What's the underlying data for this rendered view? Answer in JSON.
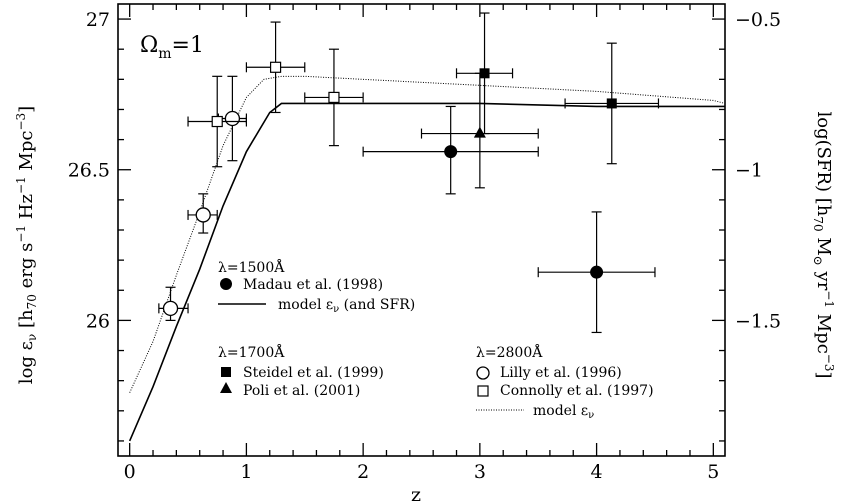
{
  "chart_data": {
    "type": "scatter",
    "title": "",
    "annotation": "Ω_m=1",
    "xlabel": "z",
    "ylabel_left": "log ε_ν [h_70 erg s^-1 Hz^-1 Mpc^-3]",
    "ylabel_right": "log(SFR) [h_70 M_⊙ yr^-1 Mpc^-3]",
    "xlim": [
      -0.1,
      5.1
    ],
    "ylim": [
      25.55,
      27.05
    ],
    "ylim_right_ticks": [
      -0.5,
      -1,
      -1.5
    ],
    "x_ticks": [
      0,
      1,
      2,
      3,
      4,
      5
    ],
    "y_ticks_left": [
      26,
      26.5,
      27
    ],
    "x_tick_labels": [
      "0",
      "1",
      "2",
      "3",
      "4",
      "5"
    ],
    "y_tick_labels_left": [
      "26",
      "26.5",
      "27"
    ],
    "y_tick_labels_right": [
      "−0.5",
      "−1",
      "−1.5"
    ],
    "right_axis_relation": "SFR = log_eps - 27.5",
    "series": [
      {
        "name": "Madau et al. (1998)",
        "marker": "filled-circle",
        "points": [
          {
            "x": 2.75,
            "y": 26.56,
            "xerr": [
              0.75,
              0.75
            ],
            "yerr": [
              0.14,
              0.15
            ]
          },
          {
            "x": 4.0,
            "y": 26.16,
            "xerr": [
              0.5,
              0.5
            ],
            "yerr": [
              0.2,
              0.2
            ]
          }
        ]
      },
      {
        "name": "Steidel et al. (1999)",
        "marker": "filled-square",
        "points": [
          {
            "x": 3.04,
            "y": 26.82,
            "xerr": [
              0.24,
              0.24
            ],
            "yerr": [
              0.2,
              0.2
            ]
          },
          {
            "x": 4.13,
            "y": 26.72,
            "xerr": [
              0.4,
              0.4
            ],
            "yerr": [
              0.2,
              0.2
            ]
          }
        ]
      },
      {
        "name": "Poli et al. (2001)",
        "marker": "filled-triangle",
        "points": [
          {
            "x": 3.0,
            "y": 26.62,
            "xerr": [
              0.5,
              0.5
            ],
            "yerr": [
              0.18,
              0.2
            ]
          }
        ]
      },
      {
        "name": "Lilly et al. (1996)",
        "marker": "open-circle",
        "points": [
          {
            "x": 0.35,
            "y": 26.04,
            "xerr": [
              0.1,
              0.15
            ],
            "yerr": [
              0.04,
              0.07
            ]
          },
          {
            "x": 0.63,
            "y": 26.35,
            "xerr": [
              0.13,
              0.12
            ],
            "yerr": [
              0.06,
              0.07
            ]
          },
          {
            "x": 0.88,
            "y": 26.67,
            "xerr": [
              0.12,
              0.12
            ],
            "yerr": [
              0.14,
              0.14
            ]
          }
        ]
      },
      {
        "name": "Connolly et al. (1997)",
        "marker": "open-square",
        "points": [
          {
            "x": 0.75,
            "y": 26.66,
            "xerr": [
              0.25,
              0.25
            ],
            "yerr": [
              0.15,
              0.15
            ]
          },
          {
            "x": 1.25,
            "y": 26.84,
            "xerr": [
              0.25,
              0.25
            ],
            "yerr": [
              0.15,
              0.15
            ]
          },
          {
            "x": 1.75,
            "y": 26.74,
            "xerr": [
              0.25,
              0.25
            ],
            "yerr": [
              0.16,
              0.16
            ]
          }
        ]
      }
    ],
    "model_solid": {
      "name": "model ε_ν (and SFR)",
      "x": [
        0,
        0.2,
        0.4,
        0.6,
        0.8,
        1.0,
        1.2,
        1.3,
        1.5,
        2.0,
        3.0,
        4.0,
        5.0,
        5.1
      ],
      "y": [
        25.6,
        25.78,
        25.98,
        26.17,
        26.38,
        26.56,
        26.69,
        26.72,
        26.72,
        26.72,
        26.72,
        26.71,
        26.71,
        26.71
      ]
    },
    "model_dotted": {
      "name": "model ε_ν",
      "x": [
        0,
        0.2,
        0.4,
        0.6,
        0.8,
        1.0,
        1.15,
        1.3,
        1.5,
        2.0,
        3.0,
        4.0,
        5.0,
        5.1
      ],
      "y": [
        25.76,
        25.93,
        26.15,
        26.36,
        26.58,
        26.74,
        26.8,
        26.81,
        26.81,
        26.8,
        26.78,
        26.76,
        26.73,
        26.72
      ]
    },
    "legend": {
      "group1_heading": "λ=1500Å",
      "group2_heading": "λ=1700Å",
      "group3_heading": "λ=2800Å",
      "madau": "Madau et al. (1998)",
      "model_solid": "model ε_ν (and SFR)",
      "steidel": "Steidel et al. (1999)",
      "poli": "Poli et al. (2001)",
      "lilly": "Lilly et al. (1996)",
      "connolly": "Connolly et al. (1997)",
      "model_dotted": "model ε_ν"
    }
  }
}
